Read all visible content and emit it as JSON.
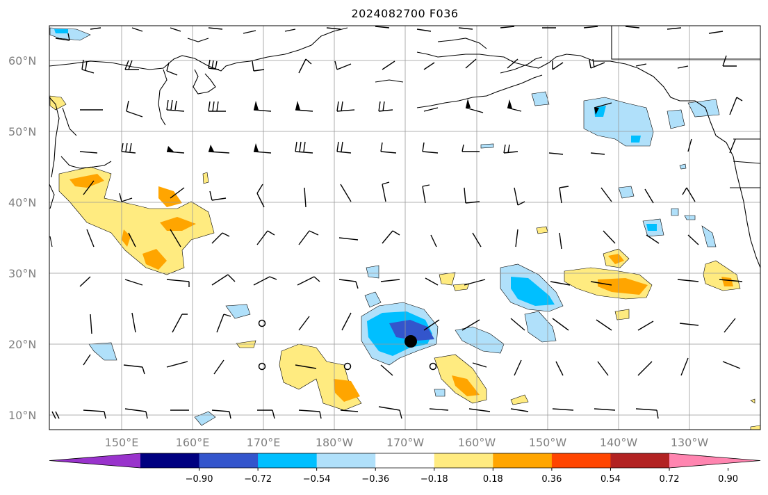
{
  "title": "2024082700 F036",
  "lat_labels": [
    "60°N",
    "50°N",
    "40°N",
    "30°N",
    "20°N",
    "10°N"
  ],
  "lon_labels": [
    "150°E",
    "160°E",
    "170°E",
    "180°W",
    "170°W",
    "160°W",
    "150°W",
    "140°W",
    "130°W"
  ],
  "colorbar": {
    "ticks": [
      "−0.90",
      "−0.72",
      "−0.54",
      "−0.36",
      "−0.18",
      "0.18",
      "0.36",
      "0.54",
      "0.72",
      "0.90"
    ],
    "colors": [
      "#9933cc",
      "#000080",
      "#3355cc",
      "#00bfff",
      "#b0e0fa",
      "#ffffff",
      "#ffeb80",
      "#ffa500",
      "#ff4500",
      "#b22222",
      "#ff85b0"
    ]
  },
  "map": {
    "region": "North Pacific",
    "lat_range": [
      "8°N",
      "65°N"
    ],
    "lon_range": [
      "140°E",
      "122°W"
    ],
    "storm_marker": {
      "lat": 20.5,
      "lon": -169
    },
    "open_circles": [
      {
        "lat": 23,
        "lon": 170
      },
      {
        "lat": 17,
        "lon": 170
      },
      {
        "lat": 17,
        "lon": -178
      },
      {
        "lat": 17,
        "lon": -164
      }
    ]
  }
}
